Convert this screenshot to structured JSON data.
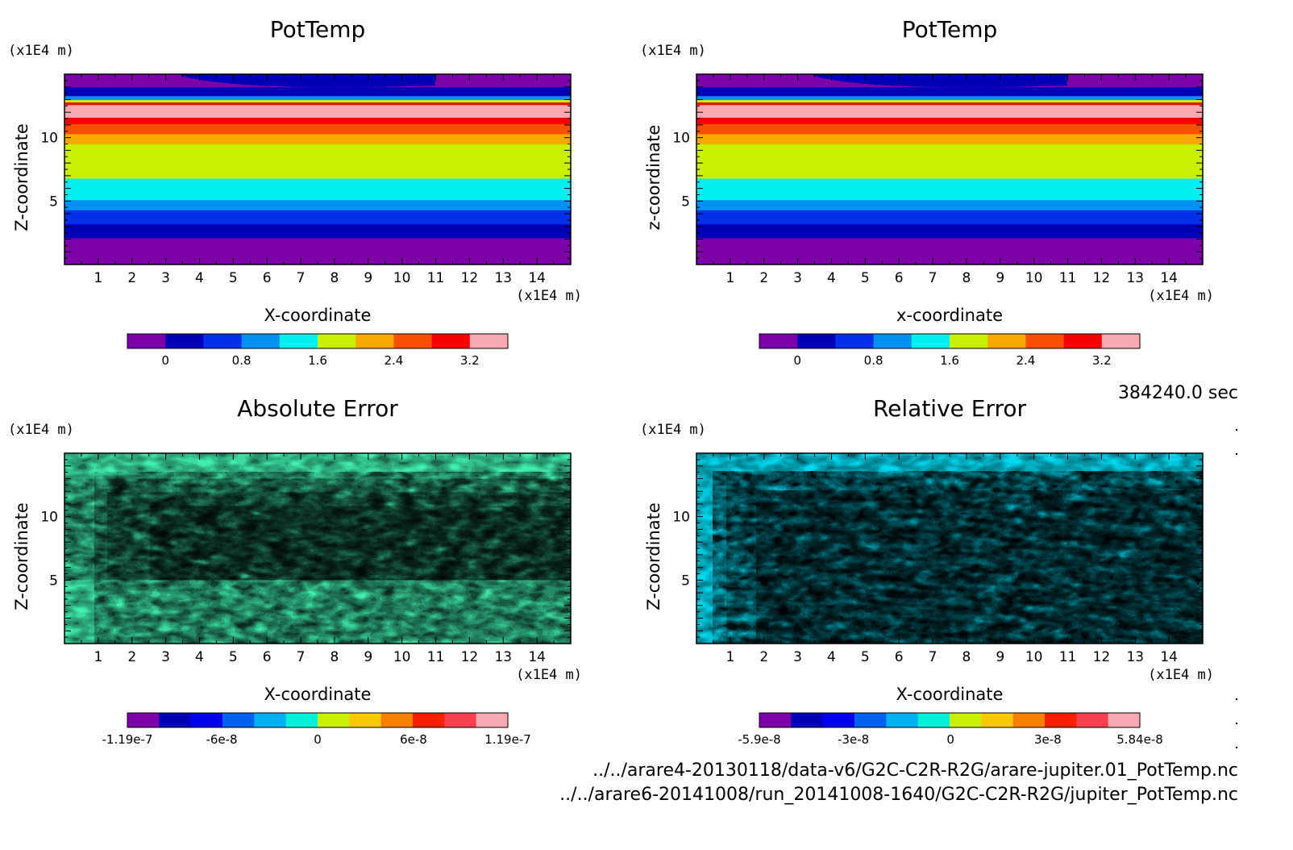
{
  "time_label": "384240.0 sec",
  "files": [
    "../../arare4-20130118/data-v6/G2C-C2R-R2G/arare-jupiter.01_PotTemp.nc",
    "../../arare6-20141008/run_20141008-1640/G2C-C2R-R2G/jupiter_PotTemp.nc"
  ],
  "palette_levels": [
    "#7b00a8",
    "#0000b8",
    "#0030e8",
    "#0090f0",
    "#00f0f0",
    "#c8f000",
    "#f8a800",
    "#f85000",
    "#f80000",
    "#f8a8b0"
  ],
  "chart_data": [
    {
      "type": "heatmap",
      "title": "PotTemp",
      "xlabel": "X-coordinate",
      "ylabel": "Z-coordinate",
      "xunit": "(x1E4 m)",
      "yunit": "(x1E4 m)",
      "xlim": [
        0,
        15
      ],
      "ylim": [
        0,
        15
      ],
      "xticks": [
        "1",
        "2",
        "3",
        "4",
        "5",
        "6",
        "7",
        "8",
        "9",
        "10",
        "11",
        "12",
        "13",
        "14"
      ],
      "yticks": [
        "5",
        "10"
      ],
      "field": "layered",
      "bands": [
        {
          "z0": 0.0,
          "z1": 2.1,
          "level": 0
        },
        {
          "z0": 2.1,
          "z1": 3.2,
          "level": 1
        },
        {
          "z0": 3.2,
          "z1": 4.3,
          "level": 2
        },
        {
          "z0": 4.3,
          "z1": 5.1,
          "level": 3
        },
        {
          "z0": 5.1,
          "z1": 6.8,
          "level": 4
        },
        {
          "z0": 6.8,
          "z1": 9.5,
          "level": 5
        },
        {
          "z0": 9.5,
          "z1": 10.3,
          "level": 6
        },
        {
          "z0": 10.3,
          "z1": 11.1,
          "level": 7
        },
        {
          "z0": 11.1,
          "z1": 11.6,
          "level": 8
        },
        {
          "z0": 11.6,
          "z1": 12.6,
          "level": 9
        },
        {
          "z0": 12.6,
          "z1": 12.8,
          "level": 8
        },
        {
          "z0": 12.8,
          "z1": 13.0,
          "level": 5
        },
        {
          "z0": 13.0,
          "z1": 13.3,
          "level": 3
        },
        {
          "z0": 13.3,
          "z1": 14.0,
          "level": 1
        },
        {
          "z0": 14.0,
          "z1": 15.0,
          "level": 0
        }
      ],
      "colorbar": {
        "levels": 10,
        "labels": [
          "0",
          "0.8",
          "1.6",
          "2.4",
          "3.2"
        ],
        "label_values": [
          0,
          0.8,
          1.6,
          2.4,
          3.2
        ],
        "range": [
          -0.4,
          3.6
        ]
      }
    },
    {
      "type": "heatmap",
      "title": "PotTemp",
      "xlabel": "x-coordinate",
      "ylabel": "z-coordinate",
      "xunit": "(x1E4 m)",
      "yunit": "(x1E4 m)",
      "xlim": [
        0,
        15
      ],
      "ylim": [
        0,
        15
      ],
      "xticks": [
        "1",
        "2",
        "3",
        "4",
        "5",
        "6",
        "7",
        "8",
        "9",
        "10",
        "11",
        "12",
        "13",
        "14"
      ],
      "yticks": [
        "5",
        "10"
      ],
      "field": "layered",
      "bands": [
        {
          "z0": 0.0,
          "z1": 2.1,
          "level": 0
        },
        {
          "z0": 2.1,
          "z1": 3.2,
          "level": 1
        },
        {
          "z0": 3.2,
          "z1": 4.3,
          "level": 2
        },
        {
          "z0": 4.3,
          "z1": 5.1,
          "level": 3
        },
        {
          "z0": 5.1,
          "z1": 6.8,
          "level": 4
        },
        {
          "z0": 6.8,
          "z1": 9.5,
          "level": 5
        },
        {
          "z0": 9.5,
          "z1": 10.3,
          "level": 6
        },
        {
          "z0": 10.3,
          "z1": 11.1,
          "level": 7
        },
        {
          "z0": 11.1,
          "z1": 11.6,
          "level": 8
        },
        {
          "z0": 11.6,
          "z1": 12.6,
          "level": 9
        },
        {
          "z0": 12.6,
          "z1": 12.8,
          "level": 8
        },
        {
          "z0": 12.8,
          "z1": 13.0,
          "level": 5
        },
        {
          "z0": 13.0,
          "z1": 13.3,
          "level": 3
        },
        {
          "z0": 13.3,
          "z1": 14.0,
          "level": 1
        },
        {
          "z0": 14.0,
          "z1": 15.0,
          "level": 0
        }
      ],
      "colorbar": {
        "levels": 10,
        "labels": [
          "0",
          "0.8",
          "1.6",
          "2.4",
          "3.2"
        ],
        "label_values": [
          0,
          0.8,
          1.6,
          2.4,
          3.2
        ],
        "range": [
          -0.4,
          3.6
        ]
      }
    },
    {
      "type": "heatmap",
      "title": "Absolute Error",
      "xlabel": "X-coordinate",
      "ylabel": "Z-coordinate",
      "xunit": "(x1E4 m)",
      "yunit": "(x1E4 m)",
      "xlim": [
        0,
        15
      ],
      "ylim": [
        0,
        15
      ],
      "xticks": [
        "1",
        "2",
        "3",
        "4",
        "5",
        "6",
        "7",
        "8",
        "9",
        "10",
        "11",
        "12",
        "13",
        "14"
      ],
      "yticks": [
        "5",
        "10"
      ],
      "field": "noise",
      "noise_profile": "concentrated at z 5-13",
      "colorbar": {
        "levels": 12,
        "labels": [
          "-1.19e-7",
          "-6e-8",
          "0",
          "6e-8",
          "1.19e-7"
        ],
        "label_values": [
          -1.19e-07,
          -6e-08,
          0,
          6e-08,
          1.19e-07
        ],
        "range": [
          -1.19e-07,
          1.19e-07
        ]
      }
    },
    {
      "type": "heatmap",
      "title": "Relative Error",
      "xlabel": "X-coordinate",
      "ylabel": "Z-coordinate",
      "xunit": "(x1E4 m)",
      "yunit": "(x1E4 m)",
      "xlim": [
        0,
        15
      ],
      "ylim": [
        0,
        15
      ],
      "xticks": [
        "1",
        "2",
        "3",
        "4",
        "5",
        "6",
        "7",
        "8",
        "9",
        "10",
        "11",
        "12",
        "13",
        "14"
      ],
      "yticks": [
        "5",
        "10"
      ],
      "field": "noise",
      "noise_profile": "uniform",
      "colorbar": {
        "levels": 12,
        "labels": [
          "-5.9e-8",
          "-3e-8",
          "0",
          "3e-8",
          "5.84e-8"
        ],
        "label_values": [
          -5.9e-08,
          -3e-08,
          0,
          3e-08,
          5.84e-08
        ],
        "range": [
          -5.9e-08,
          5.84e-08
        ]
      }
    }
  ]
}
